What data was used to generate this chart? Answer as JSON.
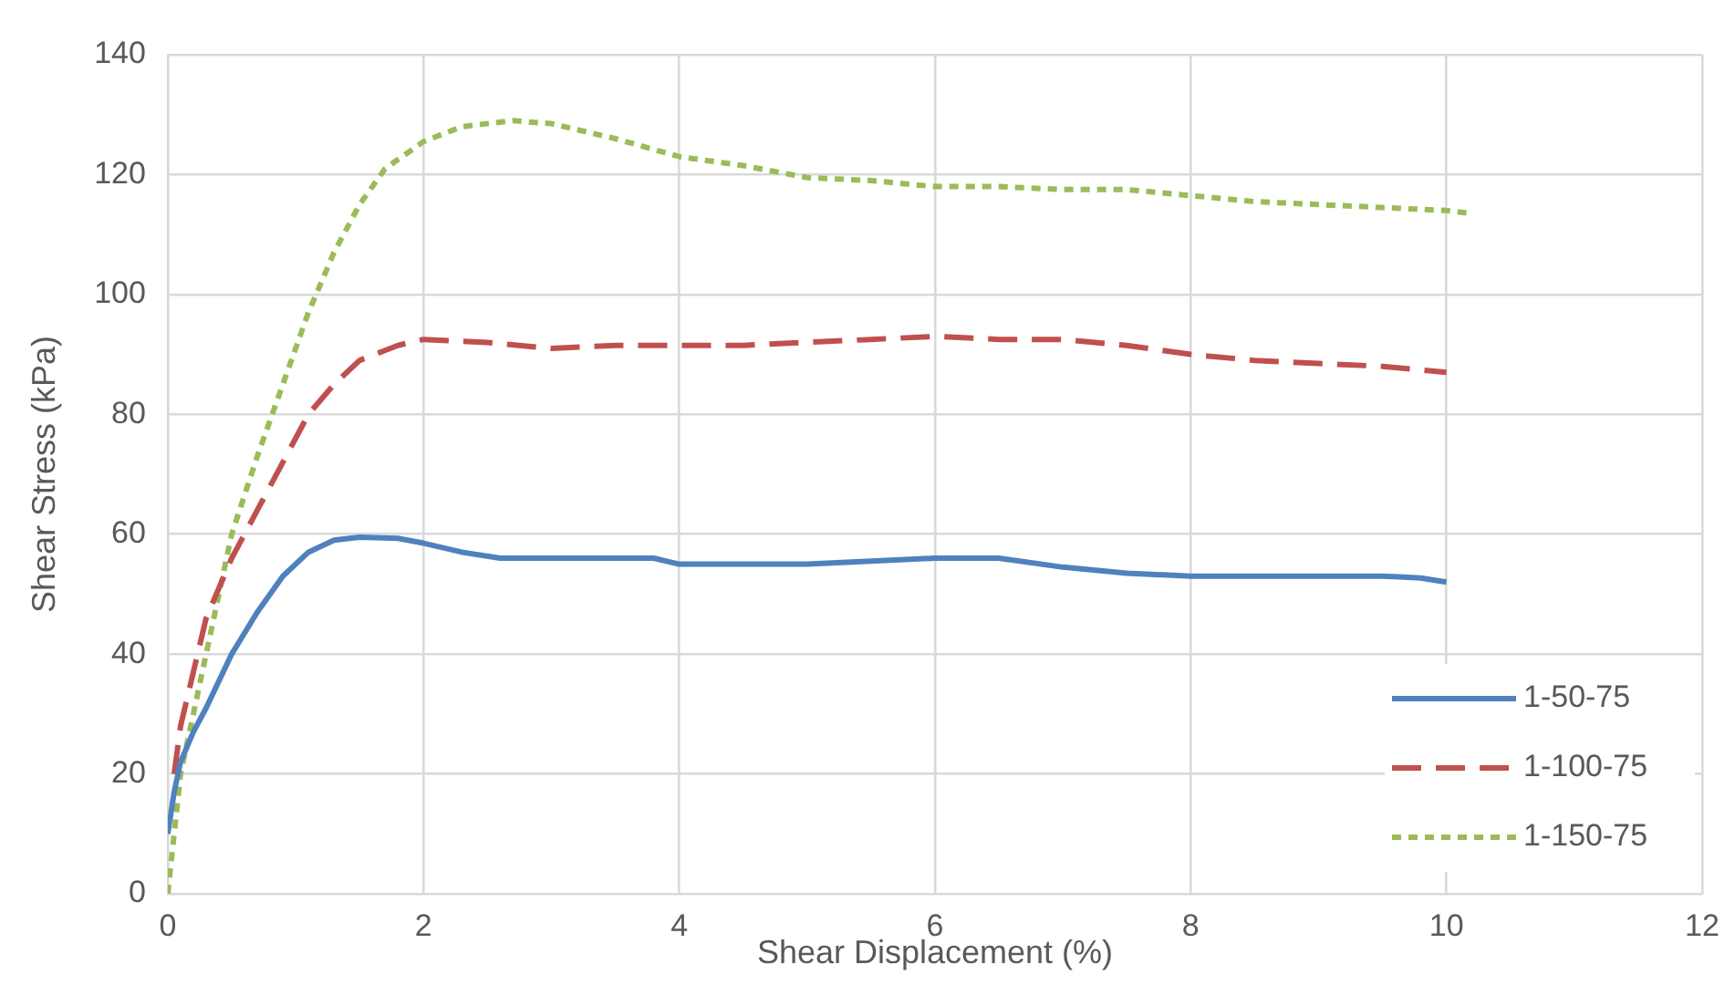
{
  "chart_data": {
    "type": "line",
    "xlabel": "Shear Displacement (%)",
    "ylabel": "Shear Stress (kPa)",
    "xlim": [
      0,
      12
    ],
    "xticks": [
      0,
      2,
      4,
      6,
      8,
      10,
      12
    ],
    "ylim": [
      0,
      140
    ],
    "yticks": [
      0,
      20,
      40,
      60,
      80,
      100,
      120,
      140
    ],
    "grid": true,
    "legend": "bottom right",
    "marker": "none",
    "series": [
      {
        "name": "1-50-75",
        "color": "#4f81bd",
        "line_style": "solid",
        "x": [
          0,
          0.05,
          0.1,
          0.2,
          0.3,
          0.5,
          0.7,
          0.9,
          1.1,
          1.3,
          1.5,
          1.8,
          2,
          2.3,
          2.6,
          3,
          3.5,
          3.8,
          4,
          4.5,
          5,
          5.5,
          6,
          6.5,
          7,
          7.5,
          8,
          9,
          9.5,
          9.8,
          10
        ],
        "values": [
          10,
          17,
          22,
          27,
          31,
          40,
          47,
          53,
          57,
          59,
          59.5,
          59.3,
          58.5,
          57,
          56,
          56,
          56,
          56,
          55,
          55,
          55,
          55.5,
          56,
          56,
          54.5,
          53.5,
          53,
          53,
          53,
          52.7,
          52
        ]
      },
      {
        "name": "1-100-75",
        "color": "#c0504d",
        "line_style": "dashed",
        "x": [
          0.05,
          0.1,
          0.2,
          0.3,
          0.5,
          0.7,
          0.9,
          1.1,
          1.3,
          1.5,
          1.8,
          2,
          2.5,
          3,
          3.5,
          4,
          4.5,
          5,
          5.5,
          6,
          6.5,
          7,
          7.5,
          8,
          8.5,
          9,
          9.5,
          10
        ],
        "values": [
          20,
          28,
          37,
          46,
          56,
          64,
          72,
          80,
          85,
          89,
          91.5,
          92.5,
          92,
          91,
          91.5,
          91.5,
          91.5,
          92,
          92.5,
          93,
          92.5,
          92.5,
          91.5,
          90,
          89,
          88.5,
          88,
          87
        ]
      },
      {
        "name": "1-150-75",
        "color": "#9bbb59",
        "line_style": "dotted",
        "x": [
          0,
          0.05,
          0.1,
          0.2,
          0.3,
          0.4,
          0.5,
          0.7,
          0.9,
          1.1,
          1.3,
          1.5,
          1.7,
          2,
          2.3,
          2.7,
          3,
          3.5,
          4,
          4.5,
          5,
          5.5,
          6,
          6.5,
          7,
          7.5,
          8,
          8.5,
          9,
          9.5,
          10,
          10.2
        ],
        "values": [
          0,
          10,
          20,
          30,
          40,
          50,
          60,
          73,
          85,
          97,
          107,
          115,
          121,
          125.5,
          128,
          129,
          128.5,
          126,
          123,
          121.5,
          119.5,
          119,
          118,
          118,
          117.5,
          117.5,
          116.5,
          115.5,
          115,
          114.5,
          114,
          113.5
        ]
      }
    ]
  }
}
